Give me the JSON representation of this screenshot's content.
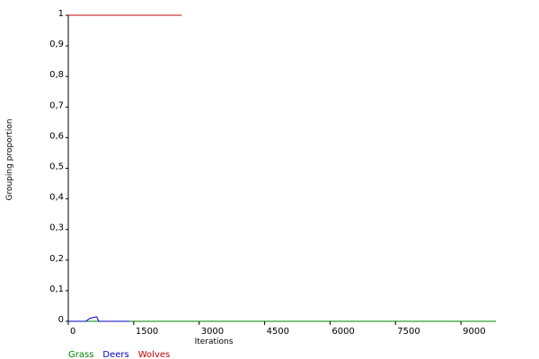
{
  "chart_data": {
    "type": "line",
    "title": "",
    "xlabel": "Iterations",
    "ylabel": "Grouping proportion",
    "xlim": [
      0,
      9800
    ],
    "ylim": [
      0,
      1
    ],
    "x_ticks": [
      0,
      1500,
      3000,
      4500,
      6000,
      7500,
      9000
    ],
    "x_tick_labels": [
      "0",
      "1500",
      "3000",
      "4500",
      "6000",
      "7500",
      "9000"
    ],
    "y_ticks": [
      0,
      0.1,
      0.2,
      0.3,
      0.4,
      0.5,
      0.6,
      0.7,
      0.8,
      0.9,
      1
    ],
    "y_tick_labels": [
      "0",
      "0,1",
      "0,2",
      "0,3",
      "0,4",
      "0,5",
      "0,6",
      "0,7",
      "0,8",
      "0,9",
      "1"
    ],
    "grid": false,
    "legend_position": "bottom-left",
    "series": [
      {
        "name": "Grass",
        "color": "#008000",
        "x": [
          0,
          9800
        ],
        "y": [
          0,
          0
        ]
      },
      {
        "name": "Deers",
        "color": "#0000c0",
        "x": [
          0,
          400,
          500,
          650,
          700,
          1400
        ],
        "y": [
          0,
          0,
          0.01,
          0.015,
          0,
          0
        ]
      },
      {
        "name": "Wolves",
        "color": "#c00000",
        "x": [
          0,
          2600
        ],
        "y": [
          1,
          1
        ]
      }
    ]
  }
}
